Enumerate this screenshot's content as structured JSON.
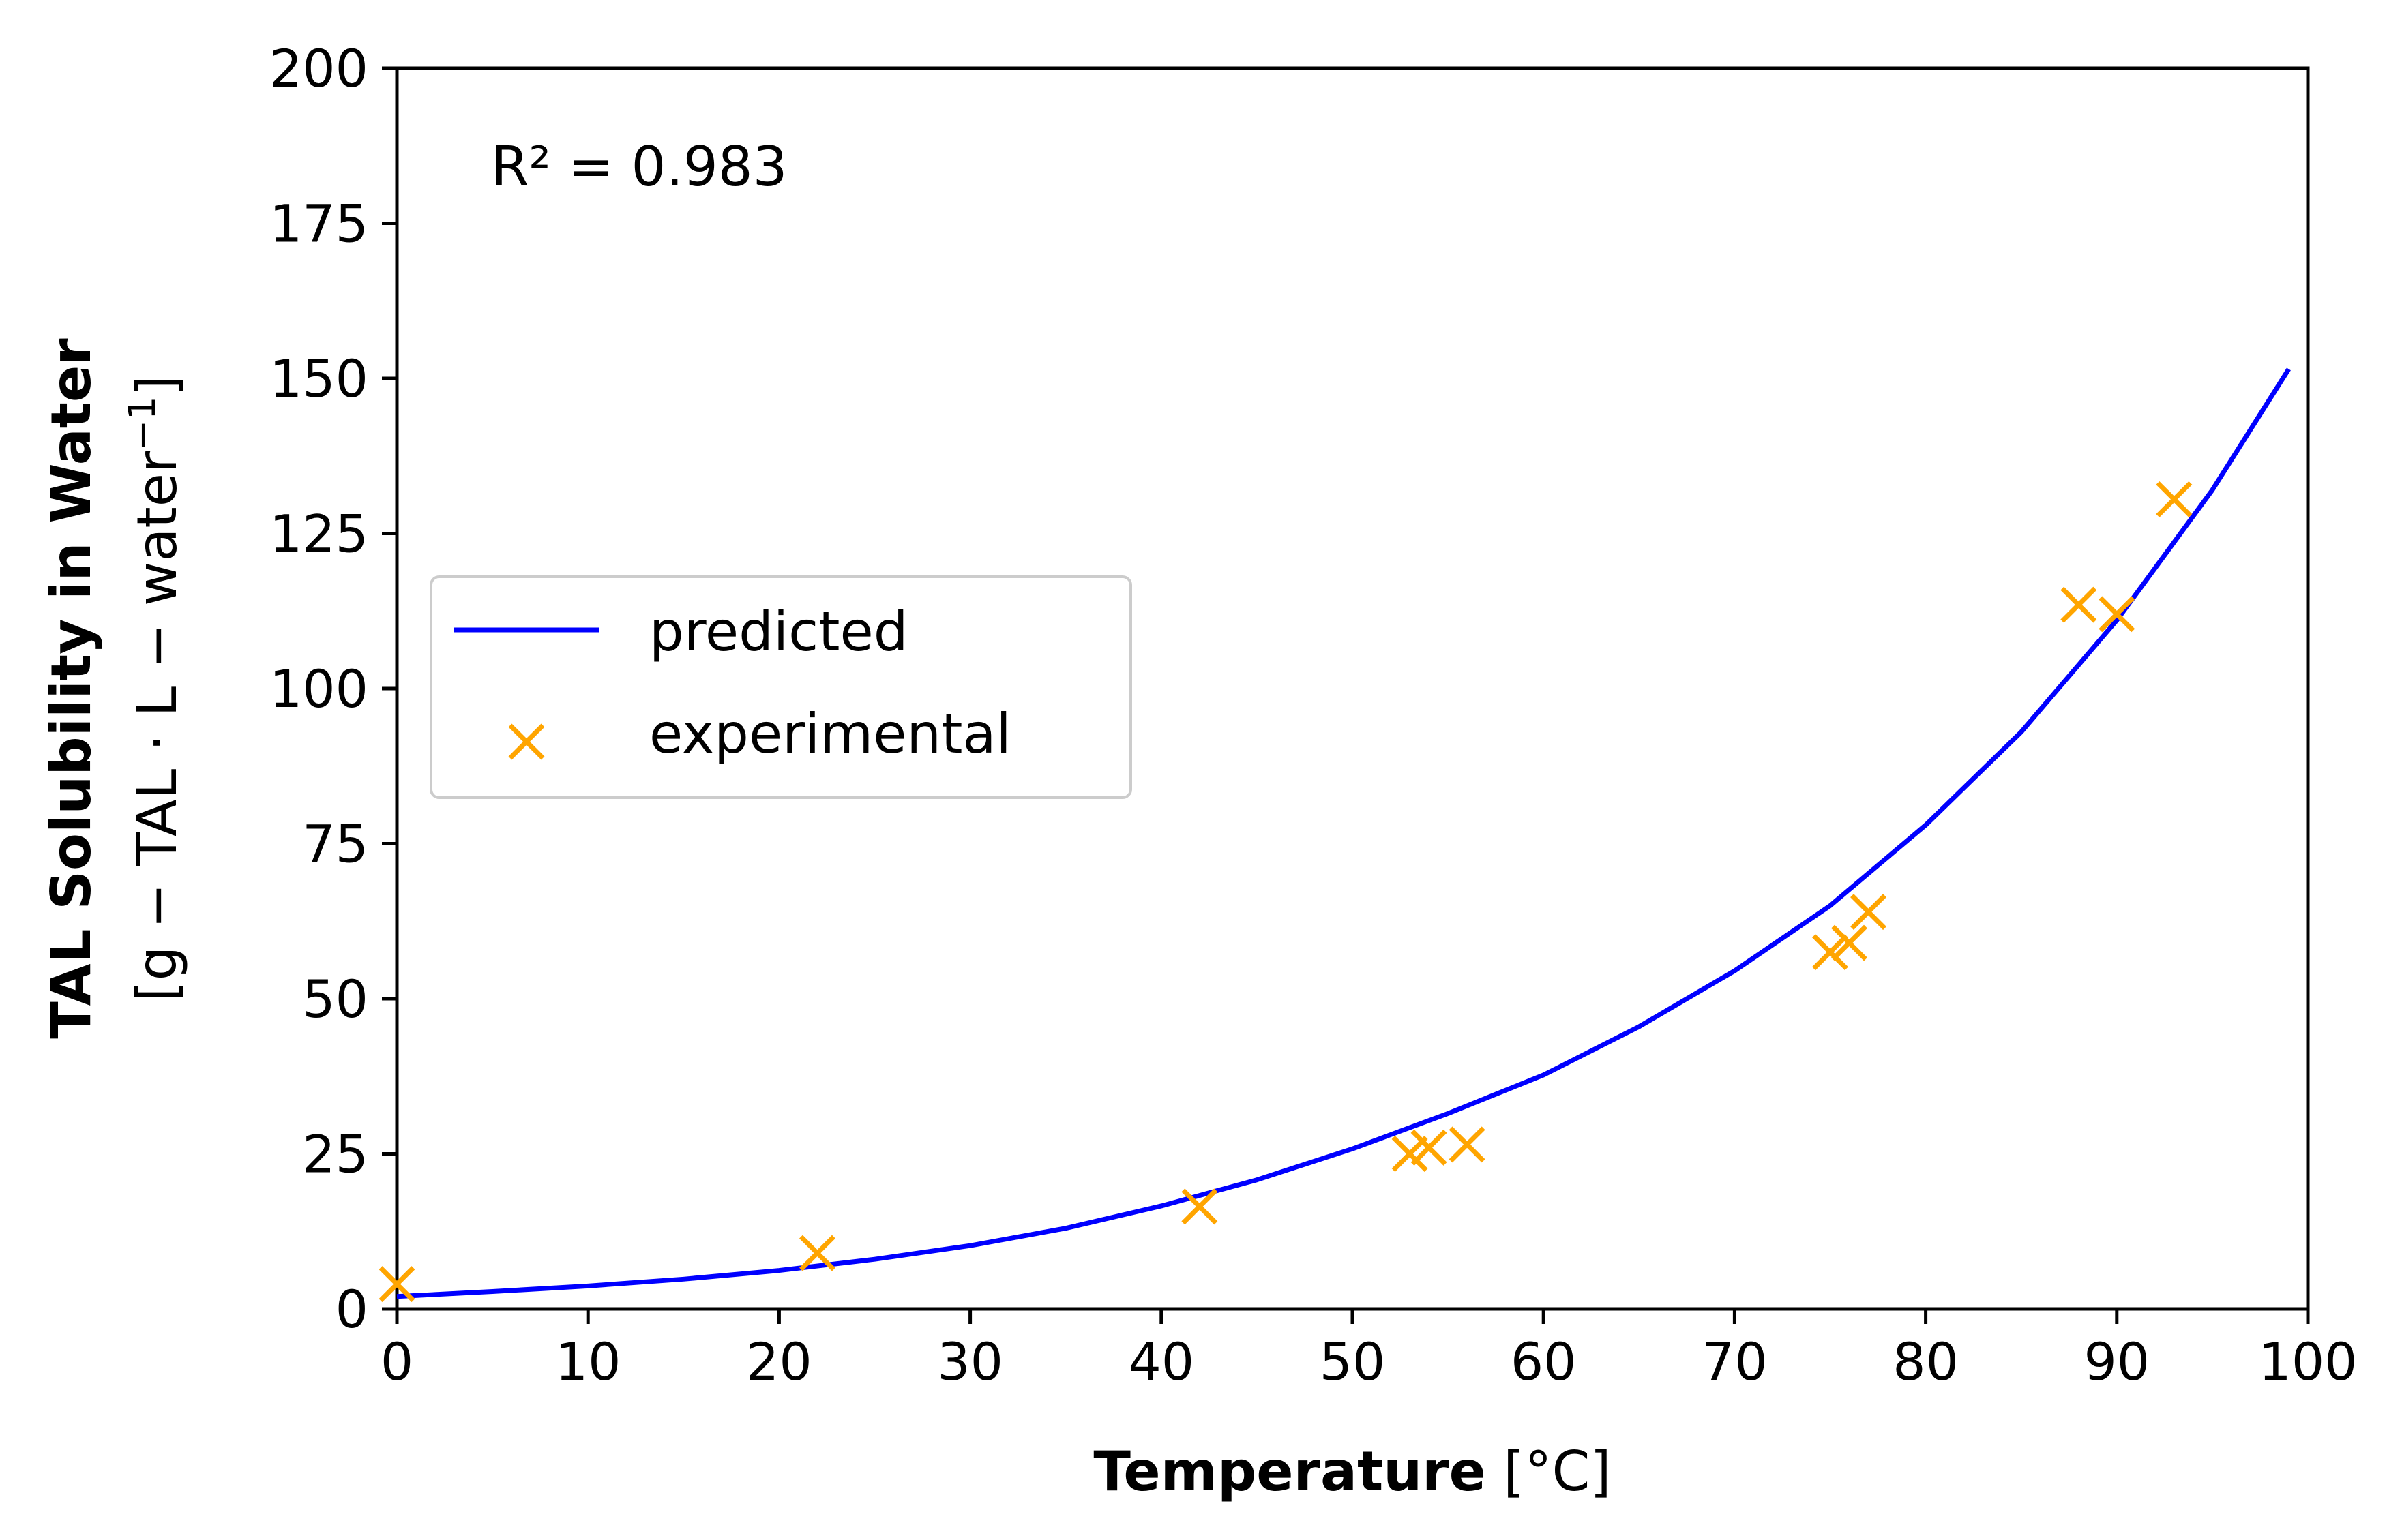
{
  "chart_data": {
    "type": "scatter",
    "xlabel_bold": "Temperature",
    "xlabel_unit": "[°C]",
    "ylabel_bold": "TAL Solubility in Water",
    "ylabel_unit_main": "[g − TAL · L − water",
    "ylabel_unit_sup": "−1",
    "ylabel_unit_close": "]",
    "xlim": [
      0,
      100
    ],
    "ylim": [
      0,
      200
    ],
    "xticks": [
      "0",
      "10",
      "20",
      "30",
      "40",
      "50",
      "60",
      "70",
      "80",
      "90",
      "100"
    ],
    "yticks": [
      "0",
      "25",
      "50",
      "75",
      "100",
      "125",
      "150",
      "175",
      "200"
    ],
    "grid": false,
    "legend_position": "center-left",
    "annotation": "R² = 0.983",
    "series": [
      {
        "name": "predicted",
        "kind": "line",
        "color": "#0000ff",
        "x": [
          0,
          5,
          10,
          15,
          20,
          25,
          30,
          35,
          40,
          45,
          50,
          55,
          60,
          65,
          70,
          75,
          80,
          85,
          90,
          95,
          99
        ],
        "y": [
          2.0,
          2.8,
          3.7,
          4.8,
          6.2,
          8.0,
          10.2,
          13.0,
          16.6,
          20.8,
          25.8,
          31.5,
          37.7,
          45.5,
          54.5,
          65.0,
          78.0,
          93.0,
          111.0,
          132.0,
          151.5
        ]
      },
      {
        "name": "experimental",
        "kind": "scatter",
        "marker": "x",
        "color": "#ffa500",
        "x": [
          0,
          22,
          42,
          53,
          54,
          56,
          75,
          76,
          77,
          88,
          90,
          93
        ],
        "y": [
          4,
          9,
          16.5,
          25,
          26,
          26.5,
          57.5,
          59,
          64,
          113.5,
          112,
          130.5
        ]
      }
    ]
  }
}
